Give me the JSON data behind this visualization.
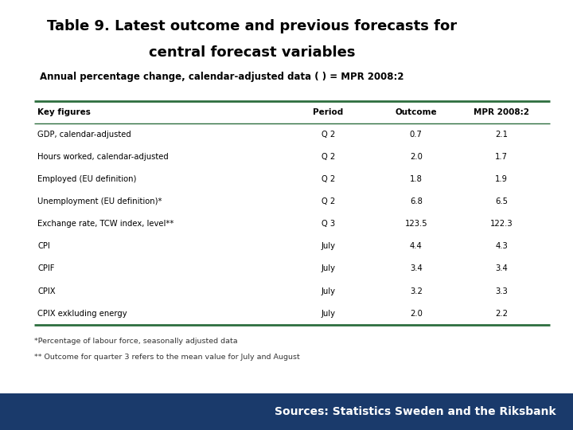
{
  "title_line1": "Table 9. Latest outcome and previous forecasts for",
  "title_line2": "central forecast variables",
  "subtitle": "Annual percentage change, calendar-adjusted data ( ) = MPR 2008:2",
  "col_headers": [
    "Key figures",
    "Period",
    "Outcome",
    "MPR 2008:2"
  ],
  "rows": [
    [
      "GDP, calendar-adjusted",
      "Q 2",
      "0.7",
      "2.1"
    ],
    [
      "Hours worked, calendar-adjusted",
      "Q 2",
      "2.0",
      "1.7"
    ],
    [
      "Employed (EU definition)",
      "Q 2",
      "1.8",
      "1.9"
    ],
    [
      "Unemployment (EU definition)*",
      "Q 2",
      "6.8",
      "6.5"
    ],
    [
      "Exchange rate, TCW index, level**",
      "Q 3",
      "123.5",
      "122.3"
    ],
    [
      "CPI",
      "July",
      "4.4",
      "4.3"
    ],
    [
      "CPIF",
      "July",
      "3.4",
      "3.4"
    ],
    [
      "CPIX",
      "July",
      "3.2",
      "3.3"
    ],
    [
      "CPIX exkluding energy",
      "July",
      "2.0",
      "2.2"
    ]
  ],
  "footnote1": "*Percentage of labour force, seasonally adjusted data",
  "footnote2": "** Outcome for quarter 3 refers to the mean value for July and August",
  "source_text": "Sources: Statistics Sweden and the Riksbank",
  "bg_color": "#ffffff",
  "table_line_color": "#2d6e3e",
  "footer_bar_color": "#1a3a6b",
  "title_color": "#000000",
  "subtitle_color": "#000000",
  "source_color": "#ffffff",
  "header_text_color": "#000000",
  "row_text_color": "#000000"
}
